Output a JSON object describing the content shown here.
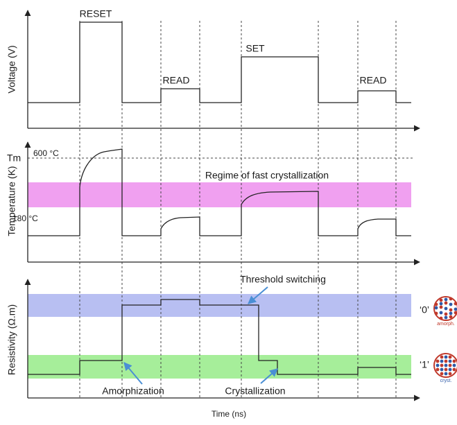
{
  "voltage_panel": {
    "axis_label": "Voltage (V)",
    "pulses": [
      "RESET",
      "READ",
      "SET",
      "READ"
    ]
  },
  "temperature_panel": {
    "axis_label": "Temperature (K)",
    "melting_label": "Tm",
    "melting_temperature": "600 °C",
    "crystallization_temperature": "180 °C",
    "band_label": "Regime of fast crystallization"
  },
  "resistivity_panel": {
    "axis_label": "Resistivity (Ω.m)",
    "states": [
      {
        "label": "‘0’",
        "icon_label": "amorph."
      },
      {
        "label": "‘1’",
        "icon_label": "cryst."
      }
    ],
    "annotations": [
      "Threshold switching",
      "Amorphization",
      "Crystallization"
    ]
  },
  "x_axis_label": "Time (ns)"
}
